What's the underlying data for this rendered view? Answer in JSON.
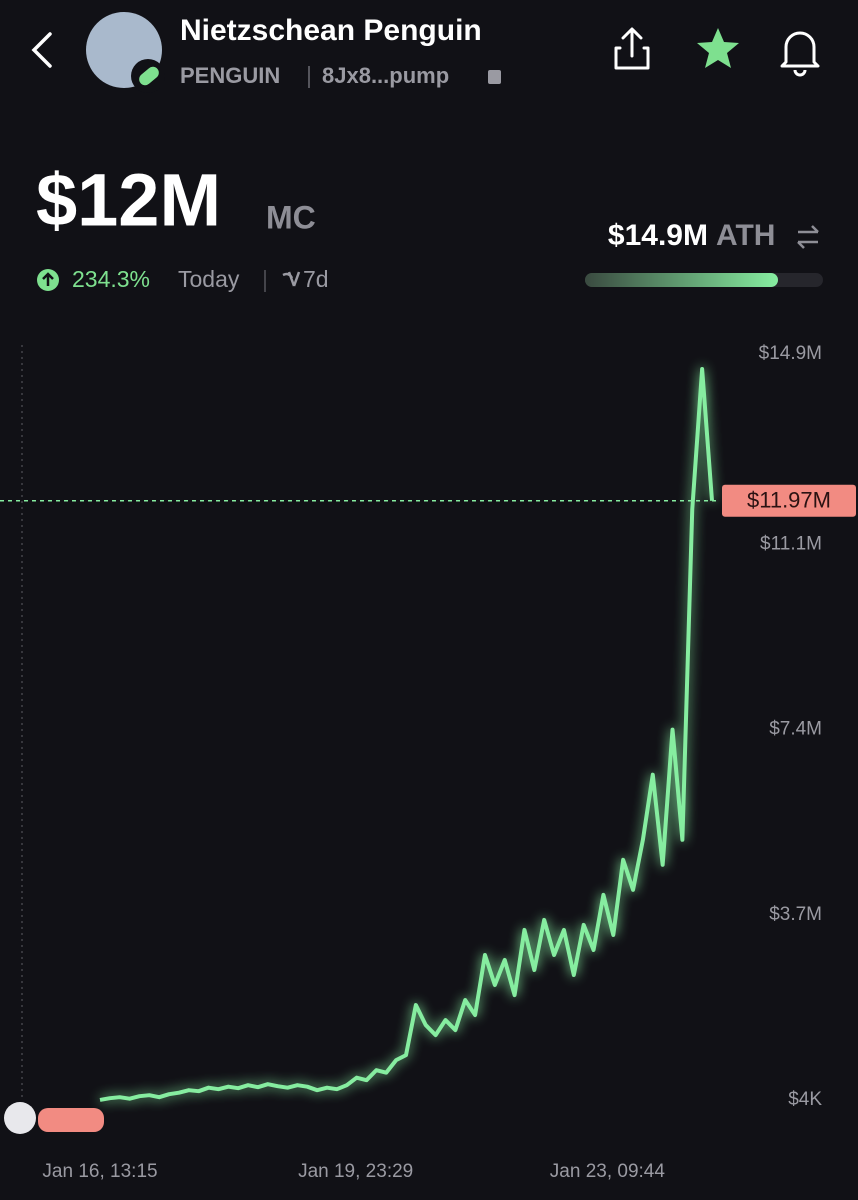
{
  "header": {
    "title": "Nietzschean Penguin",
    "ticker": "PENGUIN",
    "address": "8Jx8...pump"
  },
  "market_cap": {
    "value": "$12M",
    "unit": "MC",
    "change": "234.3%",
    "period": "Today",
    "range": "7d"
  },
  "ath": {
    "value": "$14.9M",
    "label": "ATH"
  },
  "chart_data": {
    "type": "line",
    "series": [
      {
        "color": "#86eda0",
        "values": [
          5000,
          40000,
          60000,
          30000,
          80000,
          100000,
          60000,
          120000,
          150000,
          200000,
          180000,
          250000,
          220000,
          270000,
          240000,
          300000,
          260000,
          320000,
          280000,
          250000,
          300000,
          270000,
          200000,
          250000,
          220000,
          300000,
          450000,
          400000,
          600000,
          550000,
          800000,
          900000,
          1900000,
          1500000,
          1300000,
          1600000,
          1400000,
          2000000,
          1700000,
          2900000,
          2300000,
          2800000,
          2100000,
          3400000,
          2600000,
          3600000,
          2900000,
          3400000,
          2500000,
          3500000,
          3000000,
          4100000,
          3300000,
          4800000,
          4200000,
          5200000,
          6500000,
          4700000,
          7400000,
          5200000,
          11800000,
          14600000,
          11970000
        ]
      }
    ],
    "xlim": [
      0,
      62
    ],
    "xticks": [
      {
        "value": 0,
        "label": "Jan 16, 13:15"
      },
      {
        "value": 25.9,
        "label": "Jan 19, 23:29"
      },
      {
        "value": 51.4,
        "label": "Jan 23, 09:44"
      }
    ],
    "ylim": [
      4000,
      14900000
    ],
    "yticks": [
      {
        "value": 4000,
        "label": "$4K"
      },
      {
        "value": 3700000,
        "label": "$3.7M"
      },
      {
        "value": 7400000,
        "label": "$7.4M"
      },
      {
        "value": 11100000,
        "label": "$11.1M"
      },
      {
        "value": 14900000,
        "label": "$14.9M"
      }
    ],
    "current": {
      "value": 11970000,
      "label": "$11.97M"
    }
  }
}
